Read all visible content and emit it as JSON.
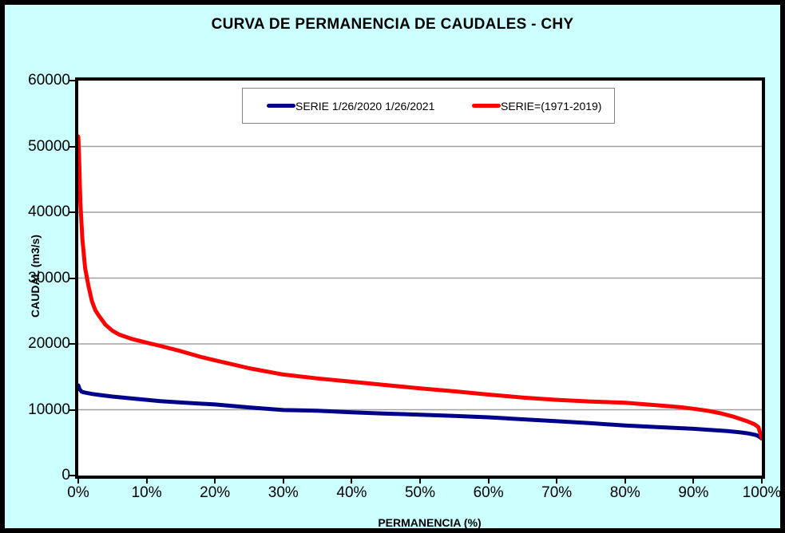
{
  "colors": {
    "page_background": "#CCFFFF",
    "plot_background": "#FFFFFF",
    "frame_border": "#000000",
    "gridline": "#A0A0A0",
    "text": "#000000",
    "legend_border": "#848484"
  },
  "chart_data": {
    "type": "line",
    "title": "CURVA DE PERMANENCIA DE CAUDALES - CHY",
    "xlabel": "PERMANENCIA (%)",
    "ylabel": "CAUDAL (m3/s)",
    "xlim": [
      0,
      100
    ],
    "ylim": [
      0,
      60000
    ],
    "grid": "horizontal-only",
    "legend_position": "top-center-inside-frame",
    "x_ticks": [
      {
        "pct": 0,
        "label": "0%"
      },
      {
        "pct": 10,
        "label": "10%"
      },
      {
        "pct": 20,
        "label": "20%"
      },
      {
        "pct": 30,
        "label": "30%"
      },
      {
        "pct": 40,
        "label": "40%"
      },
      {
        "pct": 50,
        "label": "50%"
      },
      {
        "pct": 60,
        "label": "60%"
      },
      {
        "pct": 70,
        "label": "70%"
      },
      {
        "pct": 80,
        "label": "80%"
      },
      {
        "pct": 90,
        "label": "90%"
      },
      {
        "pct": 100,
        "label": "100%"
      }
    ],
    "y_ticks": [
      {
        "value": 0,
        "label": "0"
      },
      {
        "value": 10000,
        "label": "10000"
      },
      {
        "value": 20000,
        "label": "20000"
      },
      {
        "value": 30000,
        "label": "30000"
      },
      {
        "value": 40000,
        "label": "40000"
      },
      {
        "value": 50000,
        "label": "50000"
      },
      {
        "value": 60000,
        "label": "60000"
      }
    ],
    "series": [
      {
        "name": "SERIE 1/26/2020 1/26/2021",
        "color": "#00008B",
        "x": [
          0,
          0.2,
          0.5,
          1,
          2,
          3,
          5,
          8,
          10,
          12,
          15,
          20,
          25,
          30,
          35,
          40,
          45,
          50,
          55,
          60,
          65,
          70,
          75,
          80,
          85,
          90,
          93,
          95,
          97,
          98,
          99,
          99.5,
          100
        ],
        "y": [
          13700,
          13100,
          12750,
          12600,
          12400,
          12250,
          12000,
          11700,
          11500,
          11300,
          11100,
          10800,
          10350,
          9950,
          9850,
          9600,
          9400,
          9250,
          9050,
          8850,
          8550,
          8250,
          7950,
          7600,
          7350,
          7100,
          6900,
          6750,
          6550,
          6400,
          6200,
          6000,
          5600
        ]
      },
      {
        "name": "SERIE=(1971-2019)",
        "color": "#FF0000",
        "x": [
          0,
          0.1,
          0.3,
          0.6,
          1,
          1.5,
          2,
          2.5,
          3,
          4,
          5,
          6,
          8,
          10,
          12,
          15,
          18,
          20,
          25,
          30,
          35,
          40,
          45,
          50,
          55,
          60,
          65,
          70,
          75,
          80,
          85,
          88,
          90,
          92,
          94,
          96,
          98,
          99,
          99.5,
          100
        ],
        "y": [
          51500,
          49000,
          41500,
          36000,
          31500,
          28800,
          26500,
          25100,
          24300,
          22900,
          22000,
          21400,
          20700,
          20200,
          19700,
          18900,
          18000,
          17500,
          16300,
          15350,
          14750,
          14250,
          13750,
          13250,
          12800,
          12300,
          11850,
          11500,
          11250,
          11050,
          10650,
          10400,
          10150,
          9850,
          9450,
          8900,
          8200,
          7750,
          7350,
          5650
        ]
      }
    ]
  }
}
